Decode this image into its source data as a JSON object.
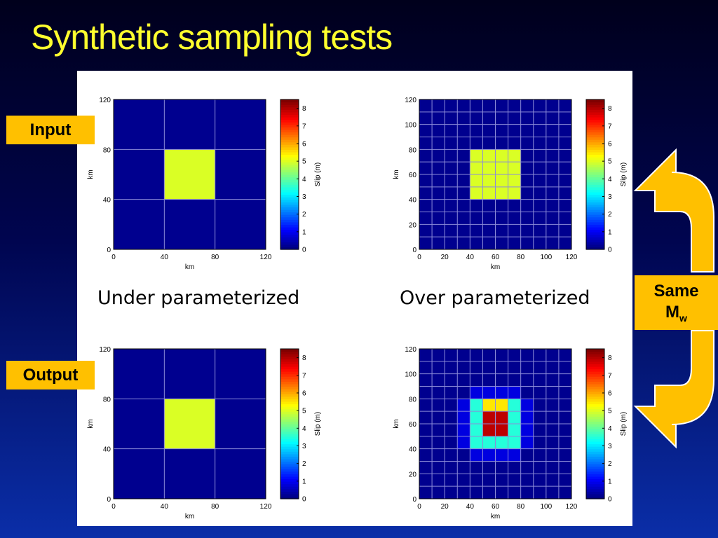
{
  "slide": {
    "title": "Synthetic sampling tests",
    "input_label": "Input",
    "output_label": "Output",
    "caption_left": "Under parameterized",
    "caption_right": "Over parameterized",
    "same_label": "Same",
    "mw_label": "M",
    "mw_sub": "w"
  },
  "colors": {
    "accent": "#ffc000",
    "title": "#ffff2e",
    "background_top": "#00001c",
    "background_bottom": "#0a2ea8"
  },
  "chart_data": [
    {
      "id": "input-under",
      "type": "heatmap",
      "xlabel": "km",
      "ylabel": "km",
      "xlim": [
        0,
        120
      ],
      "ylim": [
        0,
        120
      ],
      "xticks": [
        0,
        40,
        80,
        120
      ],
      "yticks": [
        0,
        40,
        80,
        120
      ],
      "grid_n": 3,
      "colorbar_label": "Slip (m)",
      "colorbar_ticks": [
        0,
        1,
        2,
        3,
        4,
        5,
        6,
        7,
        8
      ],
      "clim": [
        0,
        8.5
      ],
      "values": [
        [
          0,
          0,
          0
        ],
        [
          0,
          5,
          0
        ],
        [
          0,
          0,
          0
        ]
      ]
    },
    {
      "id": "input-over",
      "type": "heatmap",
      "xlabel": "km",
      "ylabel": "km",
      "xlim": [
        0,
        120
      ],
      "ylim": [
        0,
        120
      ],
      "xticks": [
        0,
        20,
        40,
        60,
        80,
        100,
        120
      ],
      "yticks": [
        0,
        20,
        40,
        60,
        80,
        100,
        120
      ],
      "grid_n": 12,
      "colorbar_label": "Slip (m)",
      "colorbar_ticks": [
        0,
        1,
        2,
        3,
        4,
        5,
        6,
        7,
        8
      ],
      "clim": [
        0,
        8.5
      ],
      "values": [
        [
          0,
          0,
          0,
          0,
          0,
          0,
          0,
          0,
          0,
          0,
          0,
          0
        ],
        [
          0,
          0,
          0,
          0,
          0,
          0,
          0,
          0,
          0,
          0,
          0,
          0
        ],
        [
          0,
          0,
          0,
          0,
          0,
          0,
          0,
          0,
          0,
          0,
          0,
          0
        ],
        [
          0,
          0,
          0,
          0,
          0,
          0,
          0,
          0,
          0,
          0,
          0,
          0
        ],
        [
          0,
          0,
          0,
          0,
          5,
          5,
          5,
          5,
          0,
          0,
          0,
          0
        ],
        [
          0,
          0,
          0,
          0,
          5,
          5,
          5,
          5,
          0,
          0,
          0,
          0
        ],
        [
          0,
          0,
          0,
          0,
          5,
          5,
          5,
          5,
          0,
          0,
          0,
          0
        ],
        [
          0,
          0,
          0,
          0,
          5,
          5,
          5,
          5,
          0,
          0,
          0,
          0
        ],
        [
          0,
          0,
          0,
          0,
          0,
          0,
          0,
          0,
          0,
          0,
          0,
          0
        ],
        [
          0,
          0,
          0,
          0,
          0,
          0,
          0,
          0,
          0,
          0,
          0,
          0
        ],
        [
          0,
          0,
          0,
          0,
          0,
          0,
          0,
          0,
          0,
          0,
          0,
          0
        ],
        [
          0,
          0,
          0,
          0,
          0,
          0,
          0,
          0,
          0,
          0,
          0,
          0
        ]
      ]
    },
    {
      "id": "output-under",
      "type": "heatmap",
      "xlabel": "km",
      "ylabel": "km",
      "xlim": [
        0,
        120
      ],
      "ylim": [
        0,
        120
      ],
      "xticks": [
        0,
        40,
        80,
        120
      ],
      "yticks": [
        0,
        40,
        80,
        120
      ],
      "grid_n": 3,
      "colorbar_label": "Slip (m)",
      "colorbar_ticks": [
        0,
        1,
        2,
        3,
        4,
        5,
        6,
        7,
        8
      ],
      "clim": [
        0,
        8.5
      ],
      "values": [
        [
          0,
          0,
          0
        ],
        [
          0,
          5,
          0
        ],
        [
          0,
          0,
          0
        ]
      ]
    },
    {
      "id": "output-over",
      "type": "heatmap",
      "xlabel": "km",
      "ylabel": "km",
      "xlim": [
        0,
        120
      ],
      "ylim": [
        0,
        120
      ],
      "xticks": [
        0,
        20,
        40,
        60,
        80,
        100,
        120
      ],
      "yticks": [
        0,
        20,
        40,
        60,
        80,
        100,
        120
      ],
      "grid_n": 12,
      "colorbar_label": "Slip (m)",
      "colorbar_ticks": [
        0,
        1,
        2,
        3,
        4,
        5,
        6,
        7,
        8
      ],
      "clim": [
        0,
        8.5
      ],
      "values": [
        [
          0,
          0,
          0,
          0,
          0,
          0,
          0,
          0,
          0,
          0,
          0,
          0
        ],
        [
          0,
          0,
          0,
          0,
          0,
          0,
          0,
          0,
          0,
          0,
          0,
          0
        ],
        [
          0,
          0,
          0,
          0,
          0,
          0,
          0,
          0,
          0,
          0,
          0,
          0
        ],
        [
          0,
          0,
          0,
          0,
          0.8,
          0.8,
          0.8,
          0.8,
          0,
          0,
          0,
          0
        ],
        [
          0,
          0,
          0,
          0.8,
          3.5,
          5.5,
          5.5,
          3.5,
          0.8,
          0,
          0,
          0
        ],
        [
          0,
          0,
          0,
          0.8,
          3.5,
          8,
          8,
          3.5,
          0.8,
          0,
          0,
          0
        ],
        [
          0,
          0,
          0,
          0.8,
          3.5,
          8,
          8,
          3.5,
          0.8,
          0,
          0,
          0
        ],
        [
          0,
          0,
          0,
          0.8,
          3.5,
          3.5,
          3.5,
          3.5,
          0.8,
          0,
          0,
          0
        ],
        [
          0,
          0,
          0,
          0,
          0.8,
          0.8,
          0.8,
          0.8,
          0,
          0,
          0,
          0
        ],
        [
          0,
          0,
          0,
          0,
          0,
          0,
          0,
          0,
          0,
          0,
          0,
          0
        ],
        [
          0,
          0,
          0,
          0,
          0,
          0,
          0,
          0,
          0,
          0,
          0,
          0
        ],
        [
          0,
          0,
          0,
          0,
          0,
          0,
          0,
          0,
          0,
          0,
          0,
          0
        ]
      ]
    }
  ]
}
